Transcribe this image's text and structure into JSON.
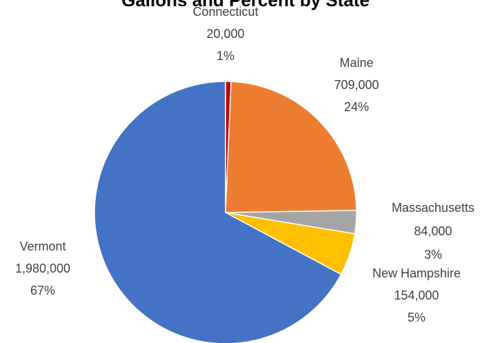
{
  "chart_data": {
    "type": "pie",
    "title": "Gallons and Percent by State",
    "categories": [
      "Connecticut",
      "Maine",
      "Massachusetts",
      "New Hampshire",
      "Vermont"
    ],
    "values": [
      20000,
      709000,
      84000,
      154000,
      1980000
    ],
    "value_labels": [
      "20,000",
      "709,000",
      "84,000",
      "154,000",
      "1,980,000"
    ],
    "percents": [
      1,
      24,
      3,
      5,
      67
    ],
    "percent_labels": [
      "1%",
      "24%",
      "3%",
      "5%",
      "67%"
    ],
    "colors": [
      "#c00000",
      "#ed7d31",
      "#a5a5a5",
      "#ffc000",
      "#4472c4"
    ]
  }
}
